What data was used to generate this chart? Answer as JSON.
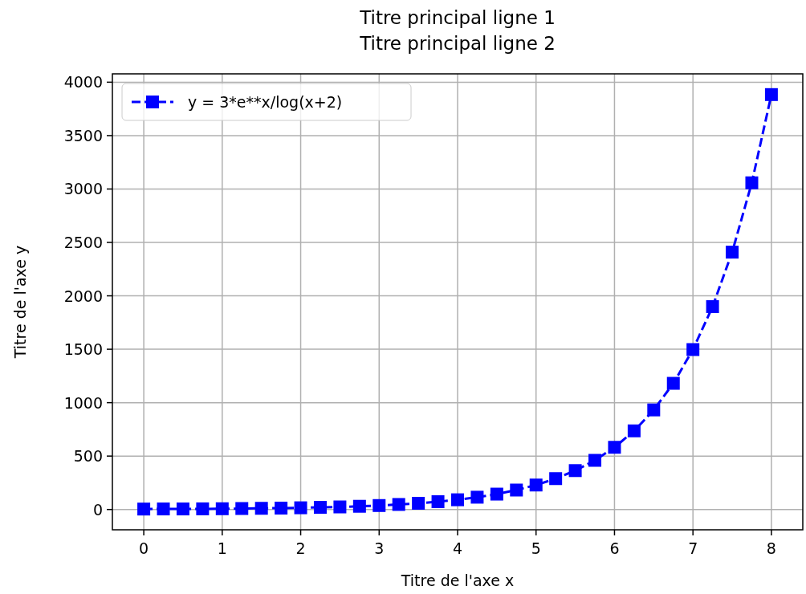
{
  "chart_data": {
    "type": "line",
    "title": "Titre principal ligne 1\nTitre principal ligne 2",
    "xlabel": "Titre de l'axe x",
    "ylabel": "Titre de l'axe y",
    "x": [
      0,
      0.25,
      0.5,
      0.75,
      1,
      1.25,
      1.5,
      1.75,
      2,
      2.25,
      2.5,
      2.75,
      3,
      3.25,
      3.5,
      3.75,
      4,
      4.25,
      4.5,
      4.75,
      5,
      5.25,
      5.5,
      5.75,
      6,
      6.25,
      6.5,
      6.75,
      7,
      7.25,
      7.5,
      7.75,
      8
    ],
    "series": [
      {
        "name": "y = 3*e**x/log(x+2)",
        "color": "#0000ff",
        "values": [
          4,
          5,
          5,
          6,
          7,
          9,
          11,
          13,
          16,
          20,
          24,
          30,
          37,
          47,
          58,
          73,
          91,
          115,
          144,
          182,
          229,
          289,
          364,
          460,
          582,
          736,
          932,
          1181,
          1497,
          1899,
          2409,
          3058,
          3884
        ]
      }
    ],
    "xlim": [
      -0.4,
      8.4
    ],
    "xticks": [
      0,
      1,
      2,
      3,
      4,
      5,
      6,
      7,
      8
    ],
    "ylim": [
      -190,
      4078
    ],
    "yticks": [
      0,
      500,
      1000,
      1500,
      2000,
      2500,
      3000,
      3500,
      4000
    ],
    "grid": true,
    "legend": "top left",
    "marker": "square",
    "line_style": "dashed"
  }
}
